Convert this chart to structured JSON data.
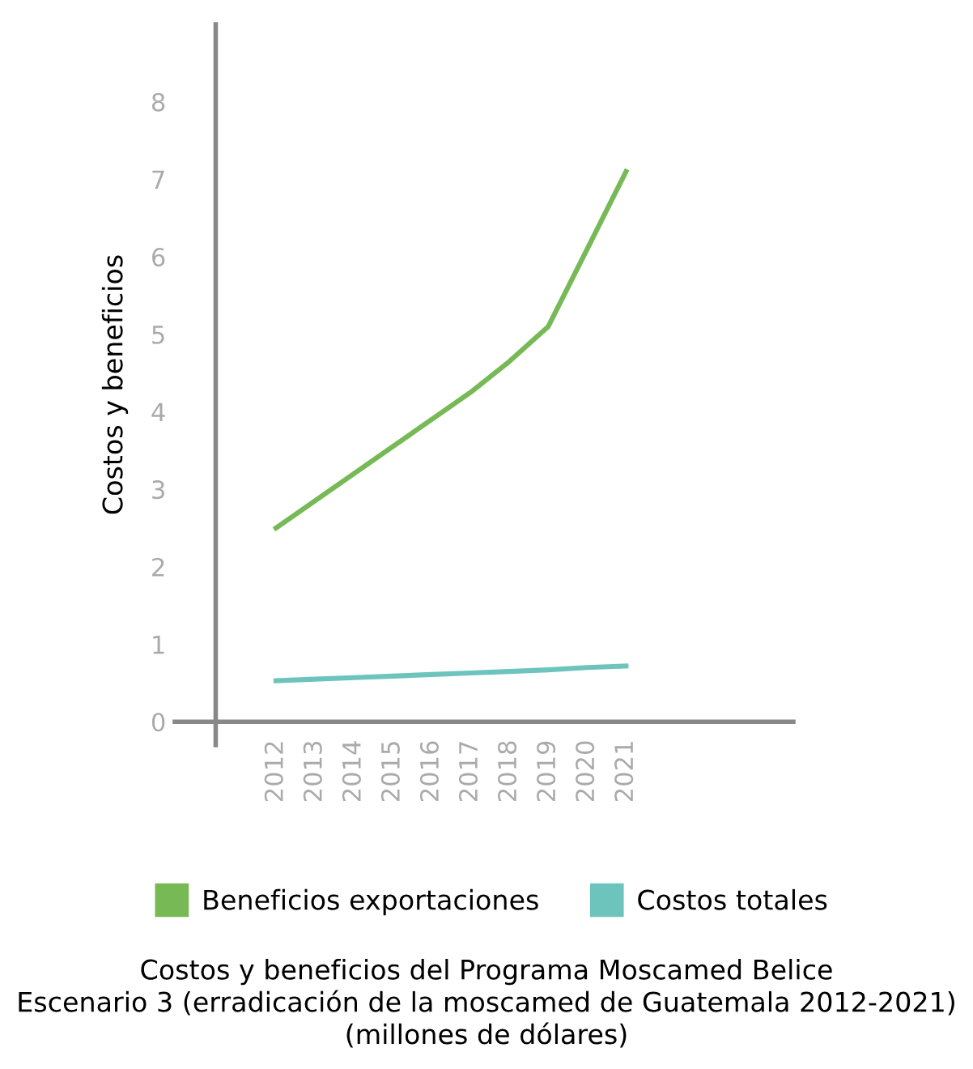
{
  "chart_data": {
    "type": "line",
    "title": "Costos y beneficios del Programa Moscamed Belice\nEscenario 3 (erradicación de la moscamed de Guatemala 2012-2021)\n(millones de dólares)",
    "ylabel": "Costos y beneficios",
    "categories": [
      "2012",
      "2013",
      "2014",
      "2015",
      "2016",
      "2017",
      "2018",
      "2019",
      "2020",
      "2021"
    ],
    "series": [
      {
        "name": "Beneficios exportaciones",
        "color": "#77b955",
        "values": [
          2.5,
          2.85,
          3.2,
          3.55,
          3.9,
          4.25,
          4.65,
          5.1,
          6.1,
          7.1
        ]
      },
      {
        "name": "Costos totales",
        "color": "#6cc4bd",
        "values": [
          0.53,
          0.55,
          0.57,
          0.59,
          0.61,
          0.63,
          0.65,
          0.67,
          0.7,
          0.72
        ]
      }
    ],
    "ylim": [
      -0.3,
      9
    ],
    "yticks": [
      0,
      1,
      2,
      3,
      4,
      5,
      6,
      7,
      8
    ],
    "grid": false,
    "legend": "bottom",
    "marker": "none",
    "line_style": "solid"
  }
}
